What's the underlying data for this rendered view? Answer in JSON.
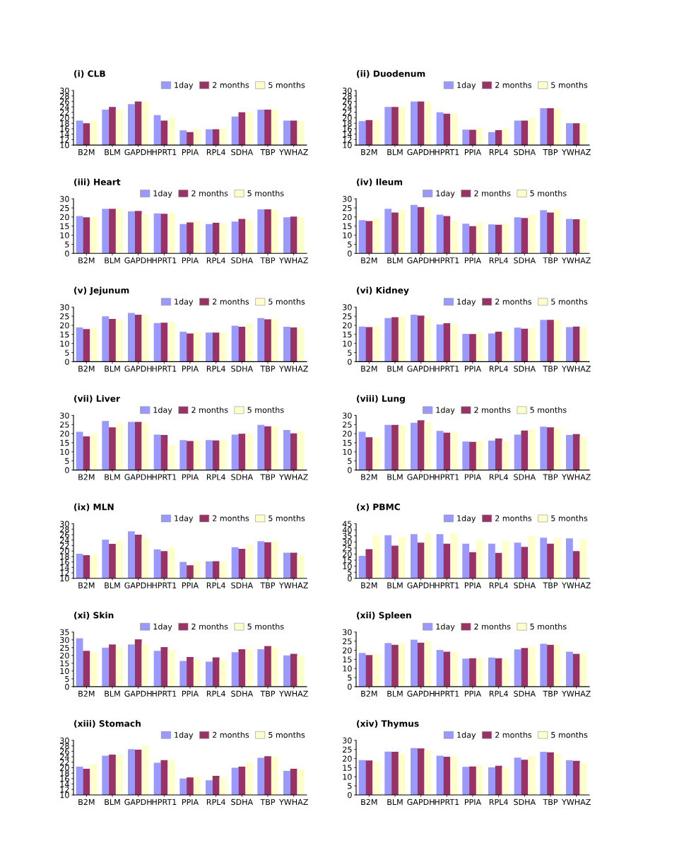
{
  "chart_data": [
    {
      "type": "bar",
      "title": "(i) CLB",
      "categories": [
        "B2M",
        "BLM",
        "GAPDH",
        "HPRT1",
        "PPIA",
        "RPL4",
        "SDHA",
        "TBP",
        "YWHAZ"
      ],
      "ylim": [
        10,
        30
      ],
      "yticks": [
        10,
        12,
        14,
        16,
        18,
        20,
        22,
        24,
        26,
        28,
        30
      ],
      "legend": "top",
      "series": [
        {
          "name": "1day",
          "color": "#9999ff",
          "values": [
            19,
            23,
            25,
            21,
            15.4,
            15.8,
            20.5,
            23,
            19
          ]
        },
        {
          "name": "2 months",
          "color": "#993366",
          "values": [
            18,
            24,
            26,
            19,
            14.8,
            15.8,
            22,
            23,
            19
          ]
        },
        {
          "name": "5 months",
          "color": "#ffffcc",
          "values": [
            19,
            23,
            26,
            20,
            15.8,
            16,
            22,
            23,
            19
          ]
        }
      ]
    },
    {
      "type": "bar",
      "title": "(ii) Duodenum",
      "categories": [
        "B2M",
        "BLM",
        "GAPDH",
        "HPRT1",
        "PPIA",
        "RPL4",
        "SDHA",
        "TBP",
        "YWHAZ"
      ],
      "ylim": [
        10,
        30
      ],
      "yticks": [
        10,
        12,
        14,
        16,
        18,
        20,
        22,
        24,
        26,
        28,
        30
      ],
      "legend": "top",
      "series": [
        {
          "name": "1day",
          "color": "#9999ff",
          "values": [
            18.8,
            24,
            26,
            22,
            15.7,
            14.8,
            19,
            23.5,
            18
          ]
        },
        {
          "name": "2 months",
          "color": "#993366",
          "values": [
            19.2,
            24,
            26,
            21.5,
            15.6,
            15.5,
            19,
            23.5,
            18
          ]
        },
        {
          "name": "5 months",
          "color": "#ffffcc",
          "values": [
            19.4,
            24,
            26,
            21.5,
            16.4,
            16,
            20,
            23.5,
            18
          ]
        }
      ]
    },
    {
      "type": "bar",
      "title": "(iii) Heart",
      "categories": [
        "B2M",
        "BLM",
        "GAPDH",
        "HPRT1",
        "PPIA",
        "RPL4",
        "SDHA",
        "TBP",
        "YWHAZ"
      ],
      "ylim": [
        0,
        30
      ],
      "yticks": [
        0,
        5,
        10,
        15,
        20,
        25,
        30
      ],
      "legend": "top",
      "series": [
        {
          "name": "1day",
          "color": "#9999ff",
          "values": [
            20.5,
            24.5,
            23.2,
            22,
            16.2,
            16.2,
            17.5,
            24.2,
            19.8
          ]
        },
        {
          "name": "2 months",
          "color": "#993366",
          "values": [
            19.8,
            24.5,
            23.3,
            21.8,
            17,
            16.8,
            19,
            24.2,
            20.2
          ]
        },
        {
          "name": "5 months",
          "color": "#ffffcc",
          "values": [
            20,
            24.5,
            21.5,
            22.2,
            17.8,
            16.6,
            18.5,
            24,
            20
          ]
        }
      ]
    },
    {
      "type": "bar",
      "title": "(iv) Ileum",
      "categories": [
        "B2M",
        "BLM",
        "GAPDH",
        "HPRT1",
        "PPIA",
        "RPL4",
        "SDHA",
        "TBP",
        "YWHAZ"
      ],
      "ylim": [
        0,
        30
      ],
      "yticks": [
        0,
        5,
        10,
        15,
        20,
        25,
        30
      ],
      "legend": "top",
      "series": [
        {
          "name": "1day",
          "color": "#9999ff",
          "values": [
            18.3,
            24.5,
            26.7,
            21.3,
            16.3,
            16,
            19.8,
            23.7,
            19
          ]
        },
        {
          "name": "2 months",
          "color": "#993366",
          "values": [
            17.8,
            22.5,
            25.5,
            20.5,
            15,
            15.8,
            19.5,
            22.5,
            18.8
          ]
        },
        {
          "name": "5 months",
          "color": "#ffffcc",
          "values": [
            19.5,
            24,
            25.3,
            17.7,
            16.8,
            16.5,
            21.3,
            24,
            19
          ]
        }
      ]
    },
    {
      "type": "bar",
      "title": "(v) Jejunum",
      "categories": [
        "B2M",
        "BLM",
        "GAPDH",
        "HPRT1",
        "PPIA",
        "RPL4",
        "SDHA",
        "TBP",
        "YWHAZ"
      ],
      "ylim": [
        0,
        30
      ],
      "yticks": [
        0,
        5,
        10,
        15,
        20,
        25,
        30
      ],
      "legend": "top",
      "series": [
        {
          "name": "1day",
          "color": "#9999ff",
          "values": [
            18.8,
            25,
            26.8,
            21.3,
            16.5,
            16,
            19.8,
            24,
            19.2
          ]
        },
        {
          "name": "2 months",
          "color": "#993366",
          "values": [
            18,
            23.5,
            25.8,
            21.5,
            15.5,
            16,
            19.2,
            23.3,
            18.8
          ]
        },
        {
          "name": "5 months",
          "color": "#ffffcc",
          "values": [
            18.8,
            23.2,
            25.5,
            21.8,
            16.5,
            16.3,
            21,
            23.4,
            18.8
          ]
        }
      ]
    },
    {
      "type": "bar",
      "title": "(vi) Kidney",
      "categories": [
        "B2M",
        "BLM",
        "GAPDH",
        "HPRT1",
        "PPIA",
        "RPL4",
        "SDHA",
        "TBP",
        "YWHAZ"
      ],
      "ylim": [
        0,
        30
      ],
      "yticks": [
        0,
        5,
        10,
        15,
        20,
        25,
        30
      ],
      "legend": "top",
      "series": [
        {
          "name": "1day",
          "color": "#9999ff",
          "values": [
            19.3,
            24,
            25.8,
            20.5,
            15.3,
            15.5,
            18.7,
            23,
            19
          ]
        },
        {
          "name": "2 months",
          "color": "#993366",
          "values": [
            19,
            24.5,
            25.3,
            21.2,
            15.2,
            16.5,
            18.2,
            23,
            19.3
          ]
        },
        {
          "name": "5 months",
          "color": "#ffffcc",
          "values": [
            19.5,
            25,
            24,
            21,
            16.2,
            16.8,
            18.5,
            23,
            19
          ]
        }
      ]
    },
    {
      "type": "bar",
      "title": "(vii) Liver",
      "categories": [
        "B2M",
        "BLM",
        "GAPDH",
        "HPRT1",
        "PPIA",
        "RPL4",
        "SDHA",
        "TBP",
        "YWHAZ"
      ],
      "ylim": [
        0,
        30
      ],
      "yticks": [
        0,
        5,
        10,
        15,
        20,
        25,
        30
      ],
      "legend": "top",
      "series": [
        {
          "name": "1day",
          "color": "#9999ff",
          "values": [
            21,
            27,
            26.5,
            19.5,
            16.5,
            16.5,
            19.5,
            24.8,
            22
          ]
        },
        {
          "name": "2 months",
          "color": "#993366",
          "values": [
            18.5,
            23.5,
            26.5,
            19.3,
            16,
            16.3,
            20,
            24,
            20.2
          ]
        },
        {
          "name": "5 months",
          "color": "#ffffcc",
          "values": [
            19.8,
            25.8,
            25.8,
            13.8,
            16.2,
            16.8,
            20,
            24,
            21.3
          ]
        }
      ]
    },
    {
      "type": "bar",
      "title": "(viii) Lung",
      "categories": [
        "B2M",
        "BLM",
        "GAPDH",
        "HPRT1",
        "PPIA",
        "RPL4",
        "SDHA",
        "TBP",
        "YWHAZ"
      ],
      "ylim": [
        0,
        30
      ],
      "yticks": [
        0,
        5,
        10,
        15,
        20,
        25,
        30
      ],
      "legend": "top",
      "series": [
        {
          "name": "1day",
          "color": "#9999ff",
          "values": [
            21,
            24.8,
            26,
            21.5,
            15.7,
            16.2,
            19.5,
            23.8,
            19.3
          ]
        },
        {
          "name": "2 months",
          "color": "#993366",
          "values": [
            18,
            24.8,
            27.3,
            20.5,
            15.5,
            17.3,
            21.7,
            23.5,
            19.8
          ]
        },
        {
          "name": "5 months",
          "color": "#ffffcc",
          "values": [
            18,
            24.3,
            26.2,
            21,
            16,
            15.8,
            22.3,
            22.8,
            18
          ]
        }
      ]
    },
    {
      "type": "bar",
      "title": "(ix) MLN",
      "categories": [
        "B2M",
        "BLM",
        "GAPDH",
        "HPRT1",
        "PPIA",
        "RPL4",
        "SDHA",
        "TBP",
        "YWHAZ"
      ],
      "ylim": [
        10,
        30
      ],
      "yticks": [
        10,
        12,
        14,
        16,
        18,
        20,
        22,
        24,
        26,
        28,
        30
      ],
      "legend": "top",
      "series": [
        {
          "name": "1day",
          "color": "#9999ff",
          "values": [
            19,
            24.2,
            27.2,
            20.6,
            16,
            16.2,
            21.4,
            23.6,
            19.4
          ]
        },
        {
          "name": "2 months",
          "color": "#993366",
          "values": [
            18.5,
            22.6,
            26,
            20,
            14.8,
            16.3,
            20.8,
            23.2,
            19.4
          ]
        },
        {
          "name": "5 months",
          "color": "#ffffcc",
          "values": [
            18.6,
            23.8,
            25,
            21.2,
            16,
            16,
            22.2,
            23.6,
            18.6
          ]
        }
      ]
    },
    {
      "type": "bar",
      "title": "(x) PBMC",
      "categories": [
        "B2M",
        "BLM",
        "GAPDH",
        "HPRT1",
        "PPIA",
        "RPL4",
        "SDHA",
        "TBP",
        "YWHAZ"
      ],
      "ylim": [
        0,
        45
      ],
      "yticks": [
        0,
        5,
        10,
        15,
        20,
        25,
        30,
        35,
        40,
        45
      ],
      "legend": "top",
      "series": [
        {
          "name": "1day",
          "color": "#9999ff",
          "values": [
            18.5,
            35.5,
            36.5,
            36.5,
            28.5,
            28.5,
            29.5,
            33.5,
            33
          ]
        },
        {
          "name": "2 months",
          "color": "#993366",
          "values": [
            24,
            27,
            29.5,
            28.5,
            21.5,
            21,
            26,
            28.5,
            22.5
          ]
        },
        {
          "name": "5 months",
          "color": "#ffffcc",
          "values": [
            35.5,
            34,
            37,
            37,
            31.5,
            31,
            35,
            33.5,
            32
          ]
        }
      ]
    },
    {
      "type": "bar",
      "title": "(xi) Skin",
      "categories": [
        "B2M",
        "BLM",
        "GAPDH",
        "HPRT1",
        "PPIA",
        "RPL4",
        "SDHA",
        "TBP",
        "YWHAZ"
      ],
      "ylim": [
        0,
        35
      ],
      "yticks": [
        0,
        5,
        10,
        15,
        20,
        25,
        30,
        35
      ],
      "legend": "top",
      "series": [
        {
          "name": "1day",
          "color": "#9999ff",
          "values": [
            31,
            25,
            27,
            23,
            16.5,
            16,
            22,
            24,
            20
          ]
        },
        {
          "name": "2 months",
          "color": "#993366",
          "values": [
            23,
            27,
            30.3,
            25.3,
            19,
            18.8,
            24,
            26,
            21
          ]
        },
        {
          "name": "5 months",
          "color": "#ffffcc",
          "values": [
            22,
            25.5,
            27.5,
            23.8,
            17.5,
            17,
            24,
            25,
            19.8
          ]
        }
      ]
    },
    {
      "type": "bar",
      "title": "(xii) Spleen",
      "categories": [
        "B2M",
        "BLM",
        "GAPDH",
        "HPRT1",
        "PPIA",
        "RPL4",
        "SDHA",
        "TBP",
        "YWHAZ"
      ],
      "ylim": [
        0,
        30
      ],
      "yticks": [
        0,
        5,
        10,
        15,
        20,
        25,
        30
      ],
      "legend": "top",
      "series": [
        {
          "name": "1day",
          "color": "#9999ff",
          "values": [
            18.5,
            24,
            25.8,
            20.2,
            15.4,
            16,
            20.5,
            23.6,
            19.2
          ]
        },
        {
          "name": "2 months",
          "color": "#993366",
          "values": [
            17.3,
            23,
            24.2,
            19.2,
            15.6,
            15.6,
            21.2,
            23,
            18
          ]
        },
        {
          "name": "5 months",
          "color": "#ffffcc",
          "values": [
            17.8,
            24,
            25.2,
            19,
            15.6,
            15,
            21.8,
            23.2,
            18.3
          ]
        }
      ]
    },
    {
      "type": "bar",
      "title": "(xiii) Stomach",
      "categories": [
        "B2M",
        "BLM",
        "GAPDH",
        "HPRT1",
        "PPIA",
        "RPL4",
        "SDHA",
        "TBP",
        "YWHAZ"
      ],
      "ylim": [
        10,
        30
      ],
      "yticks": [
        10,
        12,
        14,
        16,
        18,
        20,
        22,
        24,
        26,
        28,
        30
      ],
      "legend": "top",
      "series": [
        {
          "name": "1day",
          "color": "#9999ff",
          "values": [
            20.4,
            24.4,
            26.8,
            21.8,
            16,
            15.4,
            20,
            23.6,
            18.8
          ]
        },
        {
          "name": "2 months",
          "color": "#993366",
          "values": [
            19.6,
            24.8,
            26.6,
            22.8,
            16.4,
            17,
            20.4,
            24.2,
            19.6
          ]
        },
        {
          "name": "5 months",
          "color": "#ffffcc",
          "values": [
            21.4,
            24.8,
            28.2,
            22.8,
            16.8,
            16.4,
            22,
            24,
            19.4
          ]
        }
      ]
    },
    {
      "type": "bar",
      "title": "(xiv) Thymus",
      "categories": [
        "B2M",
        "BLM",
        "GAPDH",
        "HPRT1",
        "PPIA",
        "RPL4",
        "SDHA",
        "TBP",
        "YWHAZ"
      ],
      "ylim": [
        0,
        30
      ],
      "yticks": [
        0,
        5,
        10,
        15,
        20,
        25,
        30
      ],
      "legend": "top",
      "series": [
        {
          "name": "1day",
          "color": "#9999ff",
          "values": [
            19.2,
            23.8,
            25.8,
            21.6,
            15.5,
            15.2,
            20.5,
            23.7,
            19.1
          ]
        },
        {
          "name": "2 months",
          "color": "#993366",
          "values": [
            19,
            23.7,
            25.6,
            21,
            15.7,
            16,
            19.3,
            23.4,
            18.8
          ]
        },
        {
          "name": "5 months",
          "color": "#ffffcc",
          "values": [
            18.2,
            22.5,
            24.5,
            21.3,
            16,
            15,
            21.5,
            22.6,
            17.5
          ]
        }
      ]
    }
  ]
}
